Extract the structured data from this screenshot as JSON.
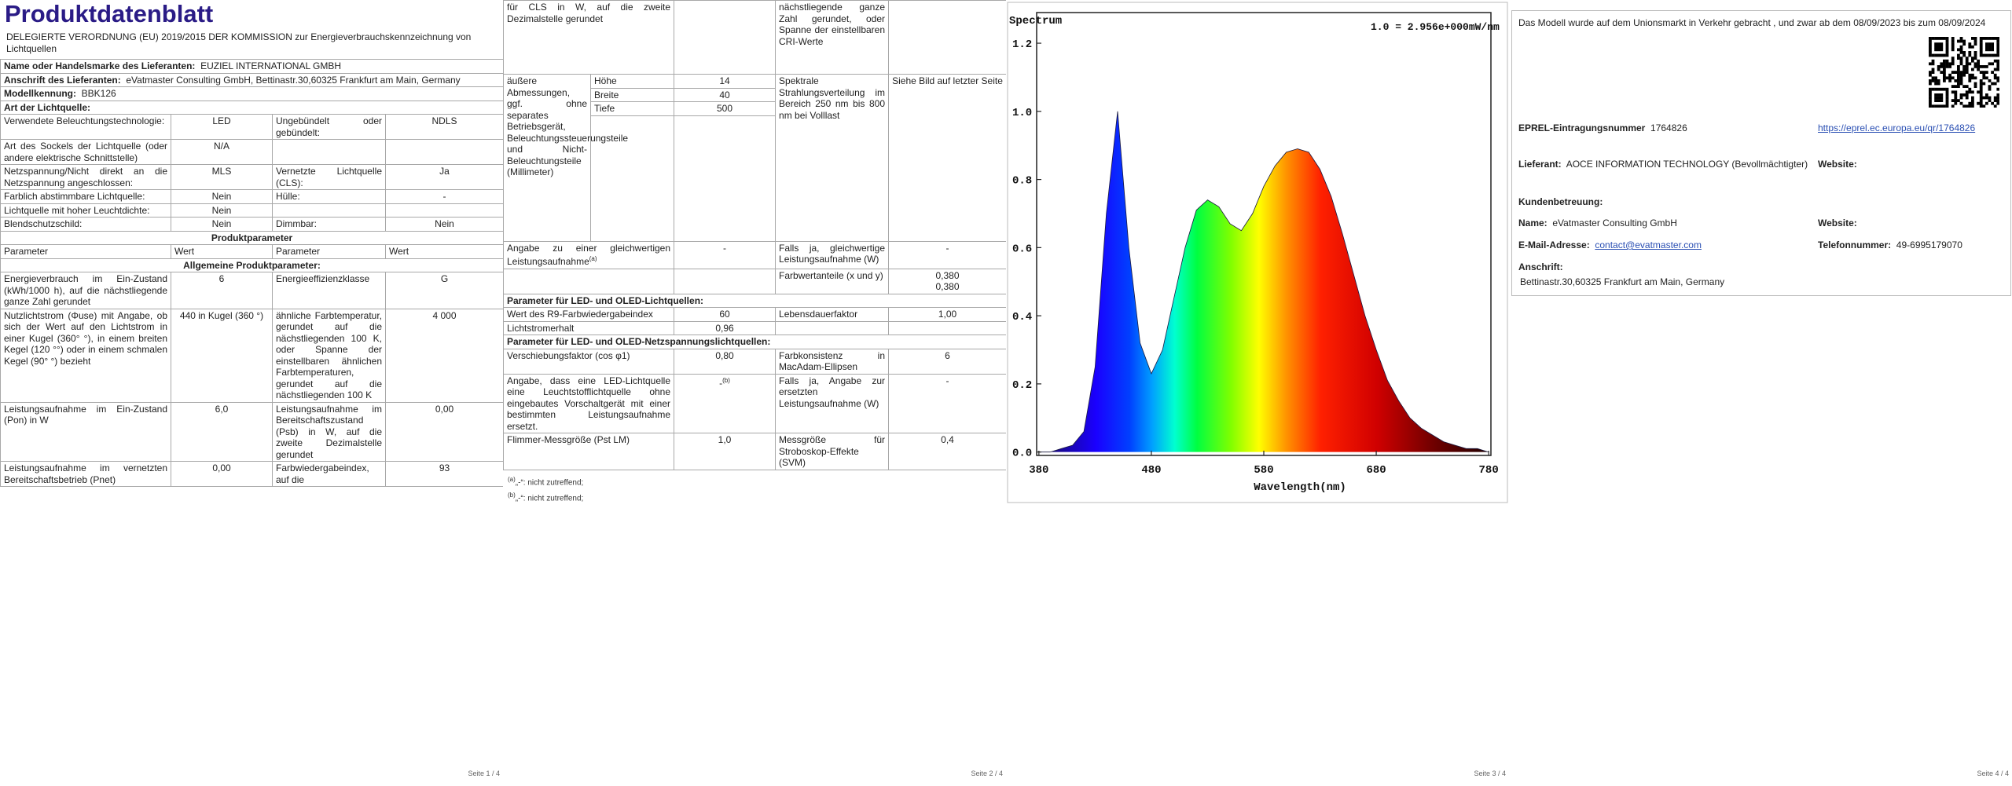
{
  "page1": {
    "title": "Produktdatenblatt",
    "regulation": "DELEGIERTE VERORDNUNG (EU) 2019/2015 DER KOMMISSION zur Energieverbrauchskennzeichnung von Lichtquellen",
    "supplier": {
      "label": "Name oder Handelsmarke des Lieferanten:",
      "value": "EUZIEL INTERNATIONAL GMBH"
    },
    "address": {
      "label": "Anschrift des Lieferanten:",
      "value": "eVatmaster Consulting GmbH, Bettinastr.30,60325 Frankfurt am Main, Germany"
    },
    "model": {
      "label": "Modellkennung:",
      "value": "BBK126"
    },
    "light_source_type": "Art der Lichtquelle:",
    "source_rows": [
      [
        "Verwendete Beleuchtungstechnologie:",
        "LED",
        "Ungebündelt oder gebündelt:",
        "NDLS"
      ],
      [
        "Art des Sockels der Lichtquelle (oder andere elektrische Schnittstelle)",
        "N/A"
      ],
      [
        "Netzspannung/Nicht direkt an die Netzspannung angeschlossen:",
        "MLS",
        "Vernetzte Lichtquelle (CLS):",
        "Ja"
      ],
      [
        "Farblich abstimmbare Lichtquelle:",
        "Nein",
        "Hülle:",
        "-"
      ],
      [
        "Lichtquelle mit hoher Leuchtdichte:",
        "Nein"
      ],
      [
        "Blendschutzschild:",
        "Nein",
        "Dimmbar:",
        "Nein"
      ]
    ],
    "product_parameters": "Produktparameter",
    "header": [
      "Parameter",
      "Wert",
      "Parameter",
      "Wert"
    ],
    "general_parameters": "Allgemeine Produktparameter:",
    "param_rows": [
      [
        "Energieverbrauch im Ein-Zustand (kWh/1000 h), auf die nächstliegende ganze Zahl gerundet",
        "6",
        "Energieeffizienzklasse",
        "G"
      ],
      [
        "Nutzlichtstrom (Φuse) mit Angabe, ob sich der Wert auf den Lichtstrom in einer Kugel (360° °), in einem breiten Kegel (120 °°) oder in einem schmalen Kegel (90° °) bezieht",
        "440 in Kugel (360 °)",
        "ähnliche Farbtemperatur, gerundet auf die nächstliegenden 100 K, oder Spanne der einstellbaren ähnlichen Farbtemperaturen, gerundet auf die nächstliegenden 100 K",
        "4 000"
      ],
      [
        "Leistungsaufnahme im Ein-Zustand (Pon) in W",
        "6,0",
        "Leistungsaufnahme im Bereitschaftszustand (Psb) in W, auf die zweite Dezimalstelle gerundet",
        "0,00"
      ],
      [
        "Leistungsaufnahme im vernetzten Bereitschaftsbetrieb (Pnet)",
        "0,00",
        "Farbwiedergabeindex, auf die",
        "93"
      ]
    ]
  },
  "page2": {
    "continuation": [
      "für CLS in W, auf die zweite Dezimalstelle gerundet",
      "nächstliegende ganze Zahl gerundet, oder Spanne der einstellbaren CRI-Werte"
    ],
    "dimensions": {
      "label": "äußere Abmessungen, ggf. ohne separates Betriebsgerät, Beleuchtungssteuerungsteile und Nicht-Beleuchtungsteile (Millimeter)",
      "rows": [
        [
          "Höhe",
          "14"
        ],
        [
          "Breite",
          "40"
        ],
        [
          "Tiefe",
          "500"
        ]
      ],
      "spectral_label": "Spektrale Strahlungsverteilung im Bereich 250 nm bis 800 nm bei Volllast",
      "spectral_value": "Siehe Bild auf letzter Seite"
    },
    "equivalent": {
      "label": "Angabe zu einer gleichwertigen Leistungsaufnahme",
      "note": "(a)",
      "value": "-",
      "if_label": "Falls ja, gleichwertige Leistungsaufnahme (W)",
      "if_value": "-"
    },
    "chromaticity": {
      "label": "Farbwertanteile (x und y)",
      "x": "0,380",
      "y": "0,380"
    },
    "led_params": "Parameter für LED- und OLED-Lichtquellen:",
    "led_rows": [
      [
        "Wert des R9-Farbwiedergabeindex",
        "60",
        "Lebensdauerfaktor",
        "1,00"
      ],
      [
        "Lichtstromerhalt",
        "0,96"
      ]
    ],
    "mains_params": "Parameter für LED- und OLED-Netzspannungslichtquellen:",
    "mains_row": [
      "Verschiebungsfaktor (cos φ1)",
      "0,80",
      "Farbkonsistenz in MacAdam-Ellipsen",
      "6"
    ],
    "replacement": {
      "label": "Angabe, dass eine LED-Lichtquelle eine Leuchtstofflichtquelle ohne eingebautes Vorschaltgerät mit einer bestimmten Leistungsaufnahme ersetzt.",
      "value": "-",
      "note": "(b)",
      "if_label": "Falls ja, Angabe zur ersetzten Leistungsaufnahme (W)",
      "if_value": "-"
    },
    "flicker": [
      "Flimmer-Messgröße (Pst LM)",
      "1,0",
      "Messgröße für Stroboskop-Effekte (SVM)",
      "0,4"
    ],
    "footnotes": [
      {
        "mark": "(a)",
        "text": "„-“: nicht zutreffend;"
      },
      {
        "mark": "(b)",
        "text": "„-“: nicht zutreffend;"
      }
    ]
  },
  "chart_data": {
    "type": "area",
    "title": "Spectrum",
    "annotation": "1.0 = 2.956e+000mW/nm",
    "x_label": "Wavelength(nm)",
    "x": [
      380,
      390,
      400,
      410,
      420,
      430,
      440,
      450,
      460,
      470,
      480,
      490,
      500,
      510,
      520,
      530,
      540,
      550,
      560,
      570,
      580,
      590,
      600,
      610,
      620,
      630,
      640,
      650,
      660,
      670,
      680,
      690,
      700,
      710,
      720,
      730,
      740,
      750,
      760,
      770,
      780
    ],
    "values": [
      0,
      0,
      0.01,
      0.02,
      0.06,
      0.25,
      0.7,
      1.0,
      0.6,
      0.32,
      0.23,
      0.3,
      0.45,
      0.6,
      0.71,
      0.74,
      0.72,
      0.67,
      0.65,
      0.7,
      0.78,
      0.84,
      0.88,
      0.89,
      0.88,
      0.83,
      0.75,
      0.64,
      0.52,
      0.4,
      0.3,
      0.21,
      0.15,
      0.1,
      0.07,
      0.05,
      0.03,
      0.02,
      0.01,
      0.01,
      0
    ],
    "xlim": [
      378,
      782
    ],
    "ylim": [
      -0.01,
      1.29
    ],
    "xticks": [
      380,
      480,
      580,
      680,
      780
    ],
    "yticks": [
      {
        "value": 0,
        "label": "0.0"
      },
      0.2,
      0.4,
      0.6,
      0.8,
      {
        "value": 1,
        "label": "1.0"
      },
      1.2
    ]
  },
  "page4": {
    "intro": "Das Modell wurde auf dem Unionsmarkt in Verkehr gebracht , und zwar ab dem 08/09/2023 bis zum 08/09/2024",
    "eprel_label": "EPREL-Eintragungsnummer",
    "eprel": "1764826",
    "eprel_link": "https://eprel.ec.europa.eu/qr/1764826",
    "supplier_label": "Lieferant:",
    "supplier": "AOCE INFORMATION TECHNOLOGY (Bevollmächtigter)",
    "supplier_website_label": "Website:",
    "customer_service": "Kundenbetreuung:",
    "name_label": "Name:",
    "name": "eVatmaster Consulting GmbH",
    "name_website_label": "Website:",
    "email_label": "E-Mail-Adresse:",
    "email": "contact@evatmaster.com",
    "phone_label": "Telefonnummer:",
    "phone": "49-6995179070",
    "address_label": "Anschrift:",
    "address": "Bettinastr.30,60325 Frankfurt am Main, Germany"
  },
  "footers": [
    "Seite 1 / 4",
    "Seite 2 / 4",
    "Seite 3 / 4",
    "Seite 4 / 4"
  ]
}
